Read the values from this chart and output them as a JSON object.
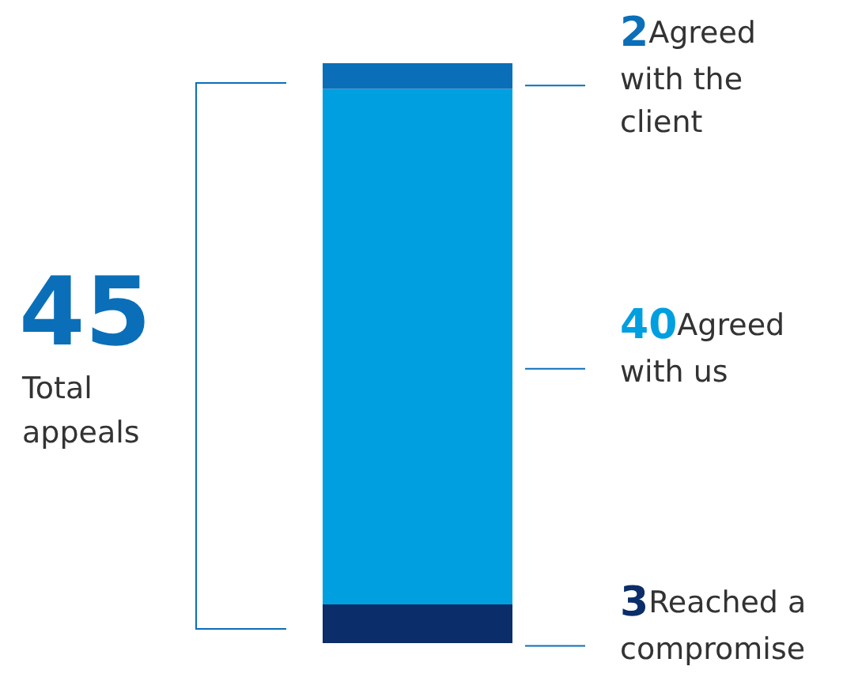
{
  "chart_data": {
    "type": "bar",
    "stacked": true,
    "categories": [
      null
    ],
    "data_labels": true,
    "series": [
      {
        "name": "Reached a compromise",
        "color": "#0b2d69",
        "values": [
          3
        ]
      },
      {
        "name": "Agreed with us",
        "color": "#009fe0",
        "values": [
          40
        ]
      },
      {
        "name": "Agreed with the client",
        "color": "#0a6fb8",
        "values": [
          2
        ]
      }
    ],
    "annotations": [
      "45",
      "Total appeals"
    ]
  }
}
